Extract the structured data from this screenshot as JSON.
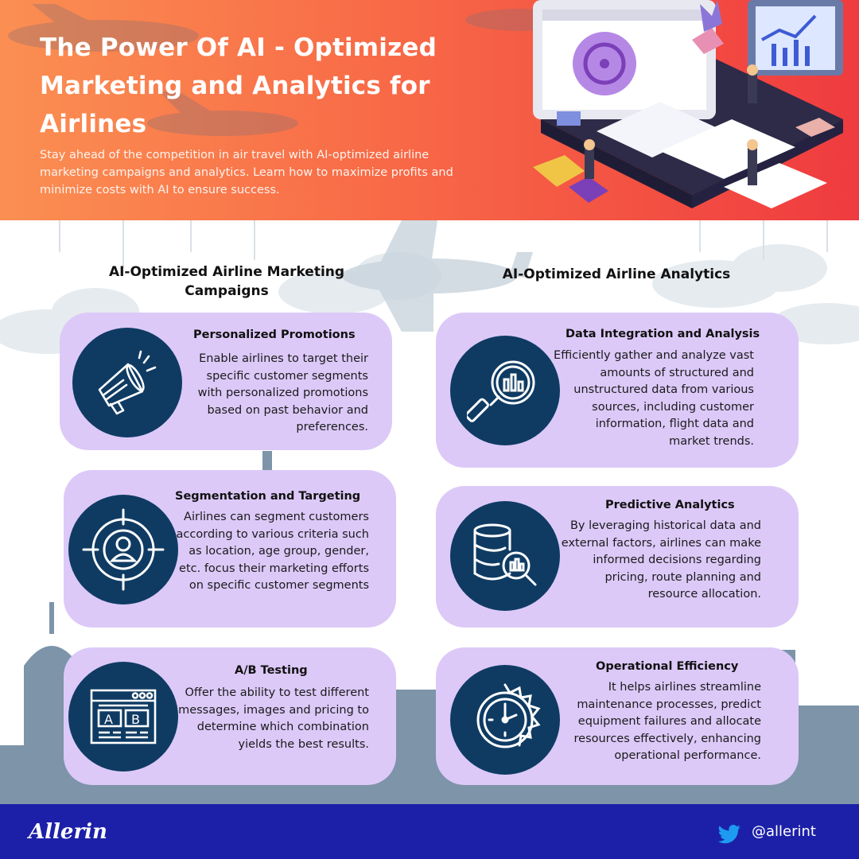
{
  "header": {
    "title": "The Power Of AI - Optimized Marketing and Analytics for Airlines",
    "subtitle": "Stay ahead of the competition in air travel with AI-optimized airline marketing campaigns and analytics. Learn how to maximize profits and minimize costs with AI to ensure success."
  },
  "columns": {
    "left_title": "AI-Optimized Airline Marketing Campaigns",
    "right_title": "AI-Optimized Airline Analytics"
  },
  "left_cards": [
    {
      "title": "Personalized Promotions",
      "text": "Enable airlines to target their specific customer segments with personalized promotions based on past behavior and preferences.",
      "icon": "megaphone-icon"
    },
    {
      "title": "Segmentation and Targeting",
      "text": "Airlines can segment customers according to various criteria such as location, age group, gender, etc.  focus their marketing efforts on specific customer segments",
      "icon": "target-user-icon"
    },
    {
      "title": "A/B Testing",
      "text": "Offer the ability to test different messages, images and pricing to determine which combination yields the best results.",
      "icon": "ab-test-icon"
    }
  ],
  "right_cards": [
    {
      "title": "Data Integration and Analysis",
      "text": "Efficiently gather and analyze vast amounts of structured and unstructured data from various sources, including customer information, flight data and market trends.",
      "icon": "magnifier-chart-icon"
    },
    {
      "title": "Predictive Analytics",
      "text": "By leveraging historical data and external factors, airlines can make informed decisions regarding pricing, route planning and resource allocation.",
      "icon": "database-search-icon"
    },
    {
      "title": "Operational Efficiency",
      "text": "It helps airlines streamline maintenance processes, predict equipment failures and allocate resources effectively, enhancing operational performance.",
      "icon": "clock-gear-icon"
    }
  ],
  "footer": {
    "brand": "Allerin",
    "handle": "@allerint",
    "social_icon": "twitter-icon"
  },
  "colors": {
    "header_start": "#fb8f52",
    "header_end": "#ef3b3f",
    "card": "#dcc9f8",
    "icon_circle": "#0f3b63",
    "footer": "#1c20a8",
    "skyline": "#7d94a9"
  }
}
